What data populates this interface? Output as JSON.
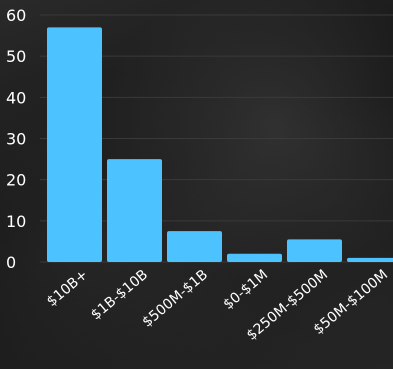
{
  "chart_data": {
    "type": "bar",
    "title": "",
    "xlabel": "",
    "ylabel": "",
    "categories": [
      "$10B+",
      "$1B-$10B",
      "$500M-$1B",
      "$0-$1M",
      "$250M-$500M",
      "$50M-$100M"
    ],
    "values": [
      57,
      25,
      7.5,
      2,
      5.5,
      1
    ],
    "ylim": [
      0,
      60
    ],
    "yticks": [
      0,
      10,
      20,
      30,
      40,
      50,
      60
    ],
    "grid": true,
    "legend": "none",
    "colors": {
      "bar": "#4cc3ff",
      "grid": "#3a3a3a",
      "text": "#ffffff"
    }
  }
}
